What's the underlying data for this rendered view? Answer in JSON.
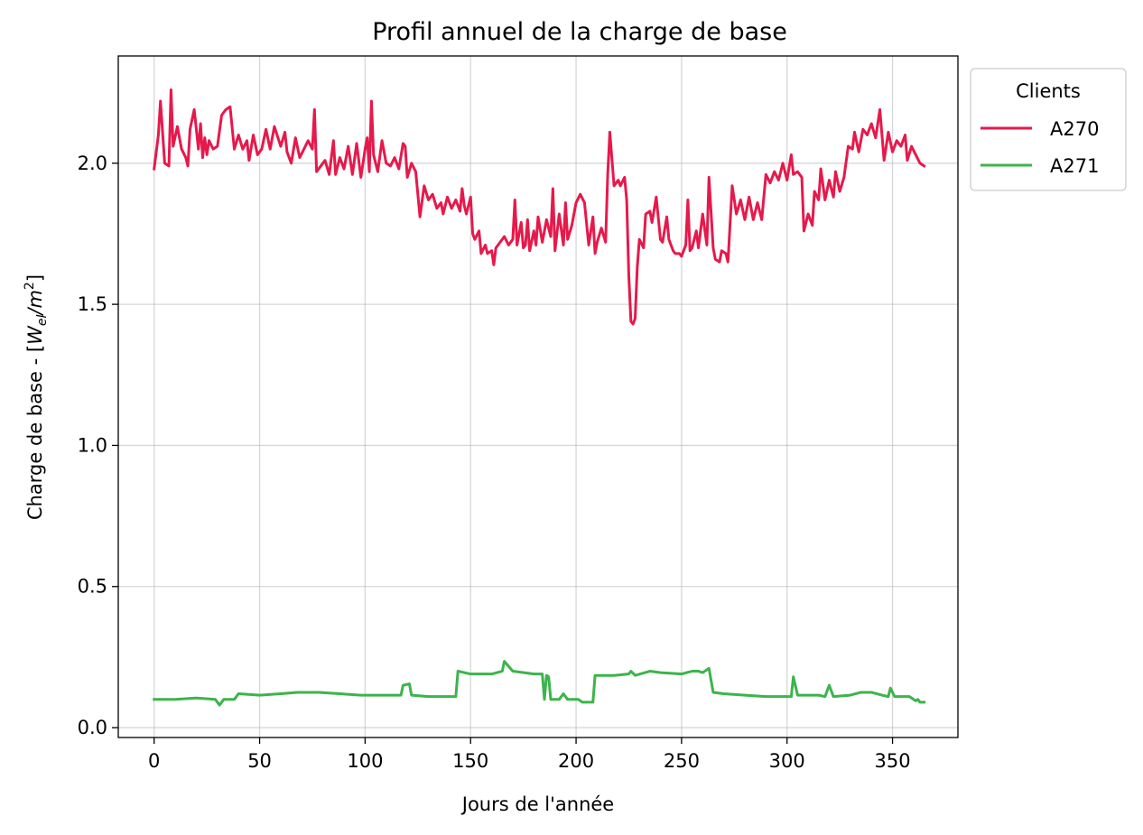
{
  "chart_data": {
    "type": "line",
    "title": "Profil annuel de la charge de base",
    "xlabel": "Jours de l'année",
    "ylabel_prefix": "Charge de base - [",
    "ylabel_W": "W",
    "ylabel_el": "el",
    "ylabel_slash": "/",
    "ylabel_m": "m",
    "ylabel_2": "2",
    "ylabel_suffix": "]",
    "xlim": [
      -17,
      381
    ],
    "ylim": [
      -0.035,
      2.38
    ],
    "xticks": [
      0,
      50,
      100,
      150,
      200,
      250,
      300,
      350
    ],
    "xtick_labels": [
      "0",
      "50",
      "100",
      "150",
      "200",
      "250",
      "300",
      "350"
    ],
    "yticks": [
      0.0,
      0.5,
      1.0,
      1.5,
      2.0
    ],
    "ytick_labels": [
      "0.0",
      "0.5",
      "1.0",
      "1.5",
      "2.0"
    ],
    "grid": true,
    "legend": {
      "title": "Clients",
      "placement": "outside-top-right"
    },
    "series": [
      {
        "name": "A270",
        "color": "#e6194b",
        "points": [
          [
            0,
            1.98
          ],
          [
            2,
            2.1
          ],
          [
            3,
            2.22
          ],
          [
            5,
            2.0
          ],
          [
            7,
            1.99
          ],
          [
            8,
            2.26
          ],
          [
            9,
            2.06
          ],
          [
            11,
            2.13
          ],
          [
            13,
            2.05
          ],
          [
            15,
            2.02
          ],
          [
            16,
            1.99
          ],
          [
            17,
            2.12
          ],
          [
            19,
            2.19
          ],
          [
            21,
            2.05
          ],
          [
            22,
            2.14
          ],
          [
            23,
            2.02
          ],
          [
            24,
            2.09
          ],
          [
            25,
            2.03
          ],
          [
            26,
            2.08
          ],
          [
            28,
            2.05
          ],
          [
            30,
            2.06
          ],
          [
            32,
            2.17
          ],
          [
            34,
            2.19
          ],
          [
            36,
            2.2
          ],
          [
            38,
            2.05
          ],
          [
            40,
            2.1
          ],
          [
            42,
            2.05
          ],
          [
            44,
            2.08
          ],
          [
            45,
            2.01
          ],
          [
            47,
            2.1
          ],
          [
            49,
            2.03
          ],
          [
            51,
            2.05
          ],
          [
            53,
            2.12
          ],
          [
            55,
            2.05
          ],
          [
            57,
            2.13
          ],
          [
            60,
            2.06
          ],
          [
            62,
            2.11
          ],
          [
            63,
            2.04
          ],
          [
            65,
            2.0
          ],
          [
            67,
            2.09
          ],
          [
            69,
            2.02
          ],
          [
            71,
            2.05
          ],
          [
            73,
            2.08
          ],
          [
            75,
            2.05
          ],
          [
            76,
            2.19
          ],
          [
            77,
            1.97
          ],
          [
            79,
            1.99
          ],
          [
            81,
            2.01
          ],
          [
            83,
            1.96
          ],
          [
            85,
            2.08
          ],
          [
            86,
            1.96
          ],
          [
            88,
            2.02
          ],
          [
            90,
            1.98
          ],
          [
            92,
            2.06
          ],
          [
            94,
            1.96
          ],
          [
            96,
            2.07
          ],
          [
            98,
            1.95
          ],
          [
            100,
            2.05
          ],
          [
            101,
            2.09
          ],
          [
            102,
            1.97
          ],
          [
            103,
            2.22
          ],
          [
            104,
            2.03
          ],
          [
            106,
            1.97
          ],
          [
            108,
            2.08
          ],
          [
            110,
            2.0
          ],
          [
            112,
            1.99
          ],
          [
            114,
            2.02
          ],
          [
            116,
            1.98
          ],
          [
            118,
            2.07
          ],
          [
            119,
            2.06
          ],
          [
            120,
            1.95
          ],
          [
            122,
            2.0
          ],
          [
            124,
            1.97
          ],
          [
            126,
            1.81
          ],
          [
            128,
            1.92
          ],
          [
            130,
            1.87
          ],
          [
            132,
            1.89
          ],
          [
            134,
            1.84
          ],
          [
            136,
            1.86
          ],
          [
            137,
            1.82
          ],
          [
            139,
            1.88
          ],
          [
            141,
            1.84
          ],
          [
            143,
            1.87
          ],
          [
            145,
            1.83
          ],
          [
            146,
            1.91
          ],
          [
            147,
            1.85
          ],
          [
            148,
            1.82
          ],
          [
            150,
            1.88
          ],
          [
            151,
            1.75
          ],
          [
            152,
            1.73
          ],
          [
            154,
            1.76
          ],
          [
            155,
            1.68
          ],
          [
            157,
            1.71
          ],
          [
            158,
            1.68
          ],
          [
            160,
            1.69
          ],
          [
            161,
            1.64
          ],
          [
            162,
            1.7
          ],
          [
            164,
            1.72
          ],
          [
            166,
            1.74
          ],
          [
            168,
            1.71
          ],
          [
            170,
            1.73
          ],
          [
            171,
            1.87
          ],
          [
            172,
            1.71
          ],
          [
            174,
            1.79
          ],
          [
            175,
            1.7
          ],
          [
            176,
            1.71
          ],
          [
            177,
            1.8
          ],
          [
            178,
            1.69
          ],
          [
            180,
            1.76
          ],
          [
            181,
            1.71
          ],
          [
            182,
            1.81
          ],
          [
            184,
            1.72
          ],
          [
            186,
            1.8
          ],
          [
            188,
            1.74
          ],
          [
            189,
            1.91
          ],
          [
            190,
            1.69
          ],
          [
            192,
            1.82
          ],
          [
            194,
            1.71
          ],
          [
            195,
            1.86
          ],
          [
            196,
            1.73
          ],
          [
            198,
            1.78
          ],
          [
            200,
            1.86
          ],
          [
            202,
            1.89
          ],
          [
            204,
            1.86
          ],
          [
            206,
            1.71
          ],
          [
            208,
            1.81
          ],
          [
            209,
            1.68
          ],
          [
            210,
            1.72
          ],
          [
            212,
            1.77
          ],
          [
            214,
            1.72
          ],
          [
            215,
            1.96
          ],
          [
            216,
            2.11
          ],
          [
            218,
            1.92
          ],
          [
            220,
            1.94
          ],
          [
            221,
            1.92
          ],
          [
            223,
            1.95
          ],
          [
            224,
            1.87
          ],
          [
            225,
            1.6
          ],
          [
            226,
            1.44
          ],
          [
            227,
            1.43
          ],
          [
            228,
            1.45
          ],
          [
            229,
            1.63
          ],
          [
            230,
            1.73
          ],
          [
            232,
            1.7
          ],
          [
            233,
            1.82
          ],
          [
            235,
            1.83
          ],
          [
            236,
            1.79
          ],
          [
            238,
            1.88
          ],
          [
            240,
            1.73
          ],
          [
            241,
            1.72
          ],
          [
            243,
            1.81
          ],
          [
            244,
            1.73
          ],
          [
            246,
            1.69
          ],
          [
            247,
            1.68
          ],
          [
            249,
            1.68
          ],
          [
            250,
            1.67
          ],
          [
            252,
            1.71
          ],
          [
            253,
            1.87
          ],
          [
            254,
            1.69
          ],
          [
            255,
            1.7
          ],
          [
            257,
            1.76
          ],
          [
            258,
            1.7
          ],
          [
            260,
            1.82
          ],
          [
            262,
            1.71
          ],
          [
            263,
            1.95
          ],
          [
            265,
            1.7
          ],
          [
            266,
            1.66
          ],
          [
            268,
            1.65
          ],
          [
            269,
            1.69
          ],
          [
            271,
            1.68
          ],
          [
            272,
            1.65
          ],
          [
            274,
            1.92
          ],
          [
            276,
            1.82
          ],
          [
            278,
            1.87
          ],
          [
            280,
            1.8
          ],
          [
            282,
            1.88
          ],
          [
            284,
            1.8
          ],
          [
            286,
            1.86
          ],
          [
            288,
            1.8
          ],
          [
            290,
            1.96
          ],
          [
            292,
            1.93
          ],
          [
            294,
            1.97
          ],
          [
            296,
            1.94
          ],
          [
            298,
            2.0
          ],
          [
            300,
            1.94
          ],
          [
            302,
            2.03
          ],
          [
            303,
            1.96
          ],
          [
            305,
            1.97
          ],
          [
            307,
            1.95
          ],
          [
            308,
            1.76
          ],
          [
            310,
            1.82
          ],
          [
            312,
            1.78
          ],
          [
            313,
            1.9
          ],
          [
            315,
            1.87
          ],
          [
            316,
            1.98
          ],
          [
            318,
            1.87
          ],
          [
            320,
            1.94
          ],
          [
            322,
            1.88
          ],
          [
            323,
            1.97
          ],
          [
            325,
            1.9
          ],
          [
            327,
            1.95
          ],
          [
            329,
            2.06
          ],
          [
            331,
            2.05
          ],
          [
            332,
            2.11
          ],
          [
            334,
            2.04
          ],
          [
            336,
            2.12
          ],
          [
            338,
            2.1
          ],
          [
            340,
            2.14
          ],
          [
            342,
            2.09
          ],
          [
            344,
            2.19
          ],
          [
            346,
            2.01
          ],
          [
            348,
            2.11
          ],
          [
            350,
            2.04
          ],
          [
            352,
            2.08
          ],
          [
            354,
            2.06
          ],
          [
            356,
            2.1
          ],
          [
            357,
            2.01
          ],
          [
            359,
            2.06
          ],
          [
            361,
            2.03
          ],
          [
            363,
            2.0
          ],
          [
            365,
            1.99
          ]
        ]
      },
      {
        "name": "A271",
        "color": "#3cb44b",
        "points": [
          [
            0,
            0.1
          ],
          [
            10,
            0.1
          ],
          [
            20,
            0.105
          ],
          [
            29,
            0.1
          ],
          [
            31,
            0.08
          ],
          [
            33,
            0.1
          ],
          [
            38,
            0.1
          ],
          [
            40,
            0.12
          ],
          [
            50,
            0.115
          ],
          [
            60,
            0.12
          ],
          [
            68,
            0.125
          ],
          [
            78,
            0.125
          ],
          [
            88,
            0.12
          ],
          [
            98,
            0.115
          ],
          [
            108,
            0.115
          ],
          [
            117,
            0.115
          ],
          [
            118,
            0.15
          ],
          [
            121,
            0.155
          ],
          [
            122,
            0.115
          ],
          [
            130,
            0.11
          ],
          [
            143,
            0.11
          ],
          [
            144,
            0.2
          ],
          [
            150,
            0.19
          ],
          [
            160,
            0.19
          ],
          [
            165,
            0.2
          ],
          [
            166,
            0.235
          ],
          [
            170,
            0.2
          ],
          [
            180,
            0.19
          ],
          [
            184,
            0.19
          ],
          [
            185,
            0.1
          ],
          [
            186,
            0.185
          ],
          [
            187,
            0.18
          ],
          [
            188,
            0.1
          ],
          [
            192,
            0.1
          ],
          [
            194,
            0.12
          ],
          [
            196,
            0.1
          ],
          [
            201,
            0.1
          ],
          [
            203,
            0.09
          ],
          [
            208,
            0.09
          ],
          [
            209,
            0.185
          ],
          [
            218,
            0.185
          ],
          [
            225,
            0.19
          ],
          [
            226,
            0.2
          ],
          [
            228,
            0.185
          ],
          [
            235,
            0.2
          ],
          [
            240,
            0.195
          ],
          [
            250,
            0.19
          ],
          [
            255,
            0.2
          ],
          [
            258,
            0.2
          ],
          [
            260,
            0.195
          ],
          [
            263,
            0.21
          ],
          [
            265,
            0.125
          ],
          [
            270,
            0.12
          ],
          [
            280,
            0.115
          ],
          [
            290,
            0.11
          ],
          [
            300,
            0.11
          ],
          [
            302,
            0.11
          ],
          [
            303,
            0.18
          ],
          [
            305,
            0.115
          ],
          [
            315,
            0.115
          ],
          [
            318,
            0.11
          ],
          [
            320,
            0.15
          ],
          [
            322,
            0.11
          ],
          [
            330,
            0.115
          ],
          [
            335,
            0.125
          ],
          [
            340,
            0.125
          ],
          [
            345,
            0.115
          ],
          [
            348,
            0.11
          ],
          [
            349,
            0.14
          ],
          [
            351,
            0.11
          ],
          [
            358,
            0.11
          ],
          [
            361,
            0.095
          ],
          [
            362,
            0.1
          ],
          [
            363,
            0.09
          ],
          [
            365,
            0.09
          ]
        ]
      }
    ]
  }
}
